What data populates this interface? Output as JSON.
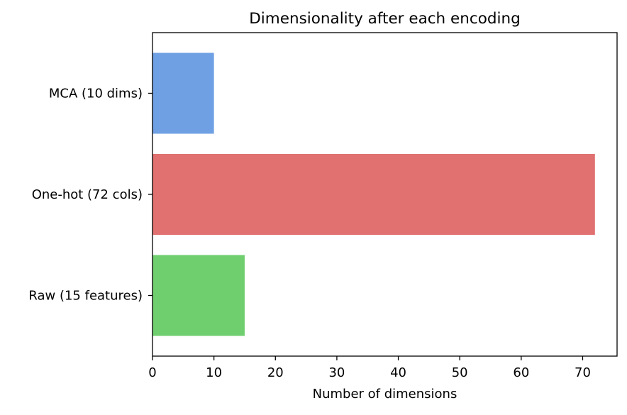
{
  "chart_data": {
    "type": "bar",
    "orientation": "horizontal",
    "title": "Dimensionality after each encoding",
    "xlabel": "Number of dimensions",
    "ylabel": "",
    "categories": [
      "Raw (15 features)",
      "One-hot (72 cols)",
      "MCA (10 dims)"
    ],
    "values": [
      15,
      72,
      10
    ],
    "colors": [
      "#6fcf6f",
      "#e07170",
      "#6fa0e3"
    ],
    "xlim": [
      0,
      75.6
    ],
    "xticks": [
      0,
      10,
      20,
      30,
      40,
      50,
      60,
      70
    ],
    "grid": false,
    "legend": "none"
  }
}
